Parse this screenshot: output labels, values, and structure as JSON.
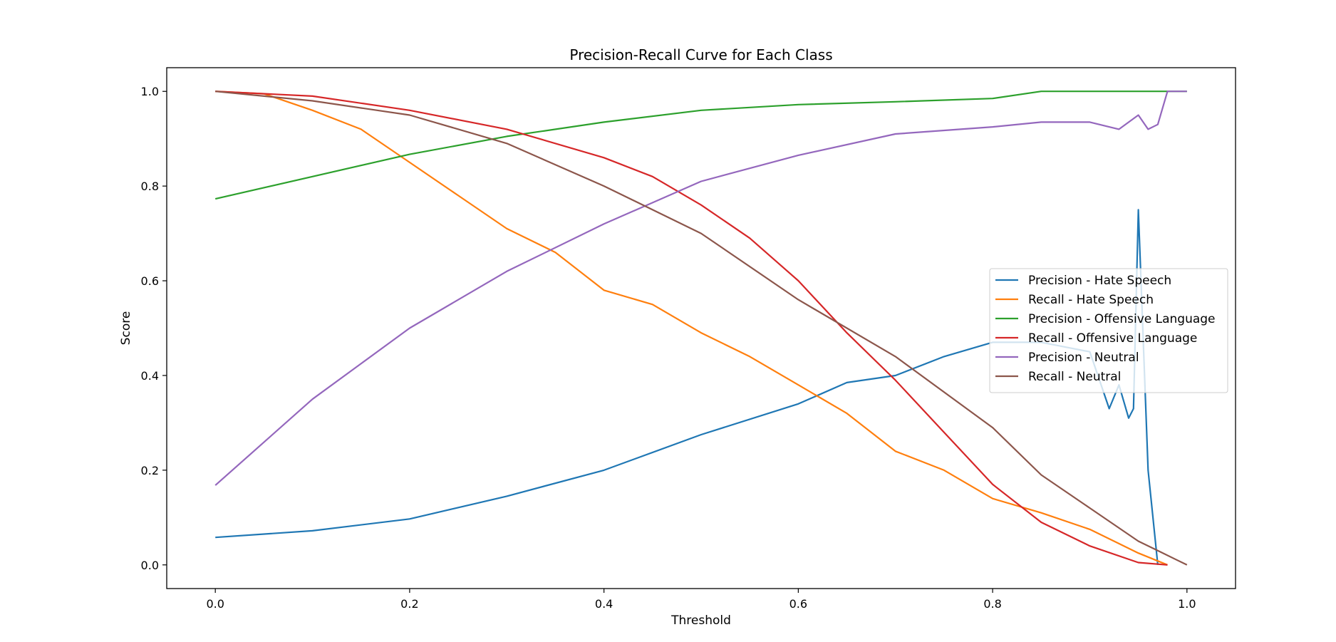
{
  "chart_data": {
    "type": "line",
    "title": "Precision-Recall Curve for Each Class",
    "xlabel": "Threshold",
    "ylabel": "Score",
    "xlim": [
      -0.05,
      1.05
    ],
    "ylim": [
      -0.05,
      1.05
    ],
    "xticks": [
      0.0,
      0.2,
      0.4,
      0.6,
      0.8,
      1.0
    ],
    "xtick_labels": [
      "0.0",
      "0.2",
      "0.4",
      "0.6",
      "0.8",
      "1.0"
    ],
    "yticks": [
      0.0,
      0.2,
      0.4,
      0.6,
      0.8,
      1.0
    ],
    "ytick_labels": [
      "0.0",
      "0.2",
      "0.4",
      "0.6",
      "0.8",
      "1.0"
    ],
    "grid": false,
    "legend_position": "center-right",
    "series": [
      {
        "name": "Precision - Hate Speech",
        "color": "#1f77b4",
        "x": [
          0.0,
          0.1,
          0.2,
          0.3,
          0.4,
          0.5,
          0.6,
          0.65,
          0.7,
          0.75,
          0.8,
          0.85,
          0.9,
          0.92,
          0.93,
          0.94,
          0.945,
          0.95,
          0.96,
          0.97
        ],
        "y": [
          0.058,
          0.072,
          0.097,
          0.145,
          0.2,
          0.275,
          0.34,
          0.385,
          0.4,
          0.44,
          0.47,
          0.47,
          0.45,
          0.33,
          0.38,
          0.31,
          0.33,
          0.75,
          0.2,
          0.0
        ]
      },
      {
        "name": "Recall - Hate Speech",
        "color": "#ff7f0e",
        "x": [
          0.0,
          0.05,
          0.1,
          0.15,
          0.2,
          0.25,
          0.3,
          0.35,
          0.4,
          0.45,
          0.5,
          0.55,
          0.6,
          0.65,
          0.7,
          0.75,
          0.8,
          0.85,
          0.9,
          0.95,
          0.98
        ],
        "y": [
          1.0,
          0.995,
          0.96,
          0.92,
          0.85,
          0.78,
          0.71,
          0.66,
          0.58,
          0.55,
          0.49,
          0.44,
          0.38,
          0.32,
          0.24,
          0.2,
          0.14,
          0.11,
          0.075,
          0.025,
          0.0
        ]
      },
      {
        "name": "Precision - Offensive Language",
        "color": "#2ca02c",
        "x": [
          0.0,
          0.1,
          0.2,
          0.3,
          0.4,
          0.5,
          0.6,
          0.7,
          0.8,
          0.85,
          0.9,
          0.95,
          1.0
        ],
        "y": [
          0.773,
          0.82,
          0.867,
          0.905,
          0.935,
          0.96,
          0.972,
          0.978,
          0.985,
          1.0,
          1.0,
          1.0,
          1.0
        ]
      },
      {
        "name": "Recall - Offensive Language",
        "color": "#d62728",
        "x": [
          0.0,
          0.1,
          0.2,
          0.3,
          0.4,
          0.45,
          0.5,
          0.55,
          0.6,
          0.65,
          0.7,
          0.75,
          0.8,
          0.85,
          0.9,
          0.95,
          0.98
        ],
        "y": [
          1.0,
          0.99,
          0.96,
          0.92,
          0.86,
          0.82,
          0.76,
          0.69,
          0.6,
          0.49,
          0.39,
          0.28,
          0.17,
          0.09,
          0.04,
          0.005,
          0.0
        ]
      },
      {
        "name": "Precision - Neutral",
        "color": "#9467bd",
        "x": [
          0.0,
          0.1,
          0.2,
          0.3,
          0.4,
          0.5,
          0.6,
          0.7,
          0.8,
          0.85,
          0.9,
          0.93,
          0.95,
          0.96,
          0.97,
          0.98,
          1.0
        ],
        "y": [
          0.168,
          0.35,
          0.5,
          0.62,
          0.72,
          0.81,
          0.865,
          0.91,
          0.925,
          0.935,
          0.935,
          0.92,
          0.95,
          0.92,
          0.93,
          1.0,
          1.0
        ]
      },
      {
        "name": "Recall - Neutral",
        "color": "#8c564b",
        "x": [
          0.0,
          0.1,
          0.2,
          0.3,
          0.4,
          0.5,
          0.6,
          0.7,
          0.8,
          0.85,
          0.9,
          0.95,
          0.97,
          1.0
        ],
        "y": [
          1.0,
          0.98,
          0.95,
          0.89,
          0.8,
          0.7,
          0.56,
          0.44,
          0.29,
          0.19,
          0.12,
          0.05,
          0.03,
          0.0
        ]
      }
    ]
  }
}
